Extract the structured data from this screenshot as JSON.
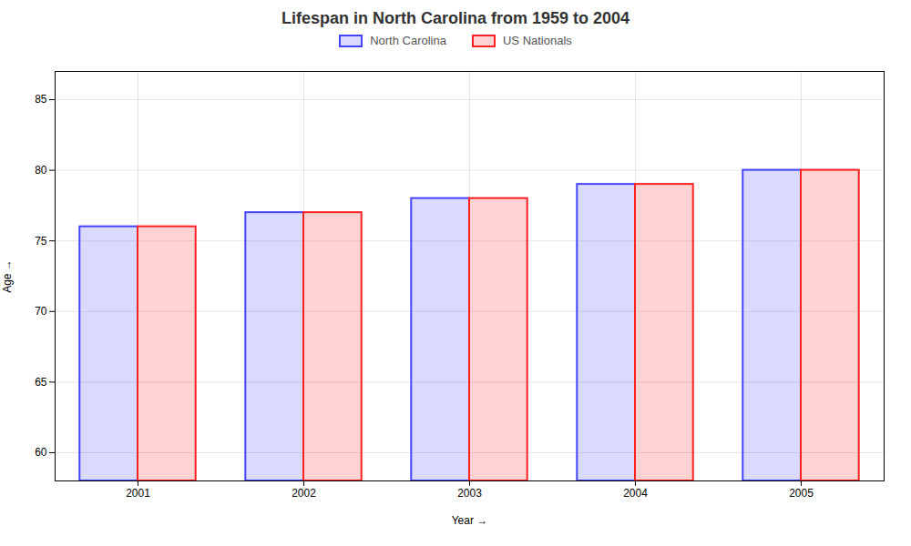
{
  "chart_data": {
    "type": "bar",
    "title": "Lifespan in North Carolina from 1959 to 2004",
    "xlabel": "Year",
    "ylabel": "Age",
    "categories": [
      "2001",
      "2002",
      "2003",
      "2004",
      "2005"
    ],
    "series": [
      {
        "name": "North Carolina",
        "color": "#4444ff",
        "values": [
          76,
          77,
          78,
          79,
          80
        ]
      },
      {
        "name": "US Nationals",
        "color": "#ff2222",
        "values": [
          76,
          77,
          78,
          79,
          80
        ]
      }
    ],
    "ylim": [
      58,
      87
    ],
    "yticks": [
      60,
      65,
      70,
      75,
      80,
      85
    ],
    "grid": true,
    "legend": "top"
  }
}
